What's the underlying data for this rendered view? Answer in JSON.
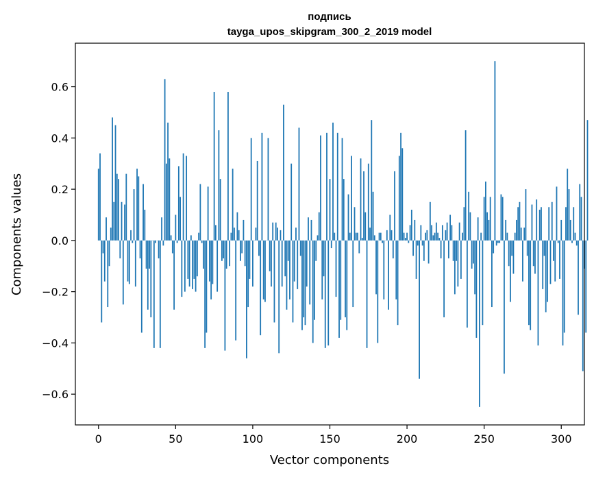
{
  "chart_data": {
    "type": "bar",
    "title_line1": "подпись",
    "title_line2": "tayga_upos_skipgram_300_2_2019 model",
    "xlabel": "Vector components",
    "ylabel": "Components values",
    "xlim": [
      -15,
      315
    ],
    "ylim": [
      -0.72,
      0.77
    ],
    "xticks": [
      0,
      50,
      100,
      150,
      200,
      250,
      300
    ],
    "xtick_labels": [
      "0",
      "50",
      "100",
      "150",
      "200",
      "250",
      "300"
    ],
    "yticks": [
      -0.6,
      -0.4,
      -0.2,
      0.0,
      0.2,
      0.4,
      0.6
    ],
    "ytick_labels": [
      "−0.6",
      "−0.4",
      "−0.2",
      "0.0",
      "0.2",
      "0.4",
      "0.6"
    ],
    "bar_color": "#1f77b4",
    "grid": false,
    "values": [
      0.28,
      0.34,
      -0.32,
      -0.05,
      -0.16,
      0.09,
      -0.26,
      -0.1,
      0.05,
      0.48,
      0.15,
      0.45,
      0.26,
      0.24,
      -0.07,
      0.15,
      -0.25,
      0.14,
      0.26,
      -0.16,
      -0.17,
      0.04,
      -0.01,
      0.2,
      -0.18,
      0.28,
      0.25,
      -0.07,
      -0.36,
      0.22,
      0.12,
      -0.11,
      -0.27,
      -0.11,
      -0.3,
      0.0,
      -0.42,
      -0.01,
      0.0,
      -0.07,
      -0.42,
      0.09,
      -0.02,
      0.63,
      0.3,
      0.46,
      0.32,
      0.02,
      -0.05,
      -0.27,
      0.1,
      -0.01,
      0.29,
      0.17,
      -0.22,
      0.34,
      -0.2,
      0.33,
      -0.15,
      -0.18,
      0.02,
      -0.19,
      -0.15,
      -0.2,
      -0.14,
      0.03,
      0.22,
      -0.01,
      -0.11,
      -0.42,
      -0.36,
      0.21,
      -0.16,
      -0.23,
      -0.17,
      0.58,
      0.06,
      -0.2,
      0.43,
      0.24,
      -0.08,
      -0.07,
      -0.43,
      -0.11,
      0.58,
      -0.1,
      0.03,
      0.28,
      0.05,
      -0.39,
      0.11,
      0.04,
      -0.08,
      -0.05,
      0.08,
      -0.1,
      -0.46,
      -0.26,
      -0.15,
      0.4,
      -0.18,
      0.0,
      0.05,
      0.31,
      -0.06,
      -0.37,
      0.42,
      -0.23,
      -0.24,
      0.0,
      0.4,
      -0.12,
      -0.18,
      0.07,
      -0.32,
      0.07,
      0.05,
      -0.44,
      0.04,
      -0.18,
      0.53,
      -0.14,
      -0.27,
      -0.08,
      -0.23,
      0.3,
      -0.32,
      -0.16,
      0.05,
      -0.19,
      0.44,
      -0.06,
      -0.35,
      -0.3,
      -0.33,
      -0.18,
      0.09,
      -0.25,
      0.08,
      -0.4,
      -0.31,
      -0.08,
      0.02,
      0.11,
      0.41,
      -0.23,
      -0.14,
      -0.42,
      0.42,
      -0.41,
      0.24,
      -0.03,
      0.46,
      0.03,
      -0.22,
      0.42,
      -0.38,
      -0.31,
      0.4,
      0.24,
      -0.3,
      -0.35,
      0.18,
      0.03,
      0.33,
      -0.26,
      0.13,
      0.03,
      0.03,
      -0.05,
      0.32,
      0.01,
      0.27,
      0.11,
      -0.42,
      0.3,
      0.05,
      0.47,
      0.19,
      0.02,
      -0.21,
      -0.4,
      0.03,
      0.03,
      -0.01,
      -0.23,
      0.0,
      0.04,
      -0.27,
      0.1,
      0.04,
      -0.07,
      0.27,
      -0.23,
      -0.33,
      0.33,
      0.42,
      0.36,
      0.03,
      0.01,
      0.03,
      -0.01,
      0.06,
      0.12,
      -0.06,
      0.08,
      -0.15,
      -0.02,
      -0.54,
      0.06,
      -0.02,
      -0.08,
      0.03,
      0.04,
      -0.09,
      0.15,
      0.06,
      0.02,
      0.03,
      0.07,
      0.03,
      0.01,
      -0.07,
      0.06,
      -0.3,
      0.04,
      0.07,
      -0.07,
      0.1,
      0.06,
      -0.08,
      -0.21,
      -0.08,
      -0.18,
      0.07,
      -0.15,
      0.03,
      0.13,
      0.43,
      -0.34,
      0.19,
      0.11,
      -0.11,
      -0.09,
      -0.21,
      -0.38,
      0.09,
      -0.65,
      0.03,
      -0.33,
      0.17,
      0.23,
      0.11,
      0.08,
      0.17,
      -0.26,
      -0.05,
      0.7,
      -0.02,
      -0.01,
      -0.01,
      0.18,
      0.17,
      -0.52,
      0.08,
      0.03,
      -0.1,
      -0.24,
      -0.06,
      -0.13,
      0.03,
      0.08,
      0.13,
      0.15,
      0.05,
      -0.16,
      0.05,
      0.2,
      -0.06,
      -0.33,
      -0.35,
      0.14,
      -0.1,
      -0.13,
      0.16,
      -0.41,
      0.12,
      0.13,
      -0.19,
      -0.06,
      -0.28,
      -0.24,
      0.13,
      -0.17,
      0.15,
      -0.08,
      -0.16,
      0.21,
      -0.01,
      -0.15,
      0.08,
      -0.41,
      -0.36,
      0.13,
      0.28,
      0.2,
      0.08,
      -0.01,
      0.13,
      0.03,
      -0.02,
      -0.29,
      0.22,
      0.17,
      -0.51,
      -0.11,
      -0.36,
      0.47
    ]
  }
}
